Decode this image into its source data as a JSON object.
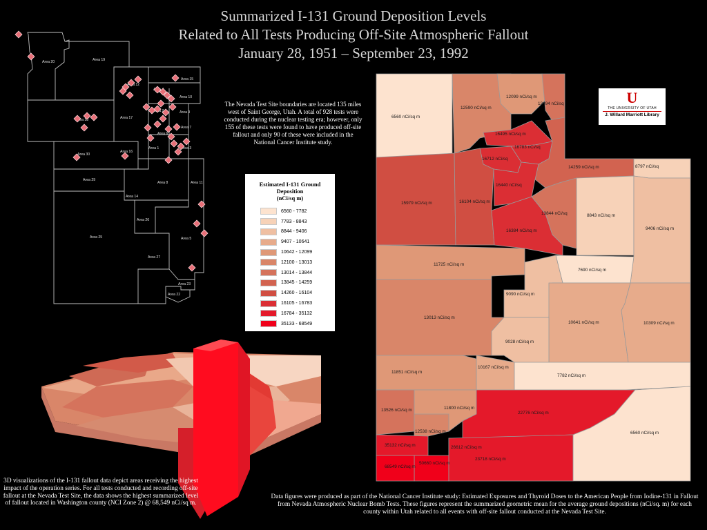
{
  "title": {
    "line1": "Summarized I-131 Ground Deposition Levels",
    "line2": "Related to All Tests Producing Off-Site Atmospheric Fallout",
    "line3": "January 28, 1951 – September 23, 1992"
  },
  "info_text": "The Nevada Test Site boundaries are located 135 miles west of Saint George, Utah. A total of 928 tests were conducted during the nuclear testing era; however, only 155 of these tests were found to have produced off-site fallout and only 90 of these were included in the National Cancer Institute study.",
  "legend": {
    "title_line1": "Estimated I-131 Ground",
    "title_line2": "Deposition",
    "title_line3": "(nCi/sq m)",
    "items": [
      {
        "label": "6560 - 7782",
        "color": "#fde3cf"
      },
      {
        "label": "7783 - 8843",
        "color": "#f7d2b8"
      },
      {
        "label": "8844 - 9406",
        "color": "#efbfa2"
      },
      {
        "label": "9407 - 10641",
        "color": "#e7ab8b"
      },
      {
        "label": "10642 - 12099",
        "color": "#df9877"
      },
      {
        "label": "12100 - 13013",
        "color": "#d98669"
      },
      {
        "label": "13014 - 13844",
        "color": "#d5735c"
      },
      {
        "label": "13845 - 14259",
        "color": "#d26350"
      },
      {
        "label": "14260 - 16104",
        "color": "#d04e42"
      },
      {
        "label": "16105 - 16783",
        "color": "#db2e34"
      },
      {
        "label": "16784 - 35132",
        "color": "#e4192a"
      },
      {
        "label": "35133 - 68549",
        "color": "#f0001a"
      }
    ]
  },
  "logo": {
    "mark": "U",
    "university": "THE UNIVERSITY OF UTAH",
    "library": "J. Willard Marriott Library"
  },
  "nts_areas": [
    "Area 20",
    "Area 19",
    "Area 12",
    "Area 15",
    "Area 18",
    "Area 10",
    "Area 9",
    "Area 17",
    "Area 7",
    "Area 2",
    "Area 4",
    "Area 1",
    "Area 3",
    "Area 16",
    "Area 30",
    "Area 29",
    "Area 8",
    "Area 11",
    "Area 6",
    "Area 14",
    "Area 26",
    "Area 25",
    "Area 5",
    "Area 27",
    "Area 23",
    "Area 22"
  ],
  "counties": [
    {
      "value": "6560 nCi/sq m",
      "color": "#fde3cf"
    },
    {
      "value": "12590 nCi/sq m",
      "color": "#d98669"
    },
    {
      "value": "12099 nCi/sq m",
      "color": "#df9877"
    },
    {
      "value": "13494 nCi/sq",
      "color": "#d5735c"
    },
    {
      "value": "16495 nCi/sq m",
      "color": "#db2e34"
    },
    {
      "value": "16783 nCi/sq",
      "color": "#db2e34"
    },
    {
      "value": "16712 nCi/sq",
      "color": "#db2e34"
    },
    {
      "value": "14259 nCi/sq m",
      "color": "#d26350"
    },
    {
      "value": "8797 nCi/sq",
      "color": "#f7d2b8"
    },
    {
      "value": "15979 nCi/sq m",
      "color": "#d04e42"
    },
    {
      "value": "16104 nCi/sq m",
      "color": "#d04e42"
    },
    {
      "value": "16440 nCi/sq",
      "color": "#db2e34"
    },
    {
      "value": "13844 nCi/sq",
      "color": "#d5735c"
    },
    {
      "value": "8843 nCi/sq m",
      "color": "#f7d2b8"
    },
    {
      "value": "9406 nCi/sq m",
      "color": "#efbfa2"
    },
    {
      "value": "16384 nCi/sq m",
      "color": "#db2e34"
    },
    {
      "value": "11725 nCi/sq m",
      "color": "#df9877"
    },
    {
      "value": "7690 nCi/sq m",
      "color": "#fde3cf"
    },
    {
      "value": "9090 nCi/sq m",
      "color": "#efbfa2"
    },
    {
      "value": "13013 nCi/sq m",
      "color": "#d98669"
    },
    {
      "value": "10641 nCi/sq m",
      "color": "#e7ab8b"
    },
    {
      "value": "10309 nCi/sq m",
      "color": "#e7ab8b"
    },
    {
      "value": "9028 nCi/sq m",
      "color": "#efbfa2"
    },
    {
      "value": "11851 nCi/sq m",
      "color": "#df9877"
    },
    {
      "value": "10167 nCi/sq m",
      "color": "#e7ab8b"
    },
    {
      "value": "7782 nCi/sq m",
      "color": "#fde3cf"
    },
    {
      "value": "13526 nCi/sq m",
      "color": "#d5735c"
    },
    {
      "value": "11800 nCi/sq m",
      "color": "#df9877"
    },
    {
      "value": "22776 nCi/sq m",
      "color": "#e4192a"
    },
    {
      "value": "12538 nCi/sq m",
      "color": "#d98669"
    },
    {
      "value": "6560 nCi/sq m",
      "color": "#fde3cf"
    },
    {
      "value": "35132 nCi/sq m",
      "color": "#e4192a"
    },
    {
      "value": "26612 nCi/sq m",
      "color": "#e4192a"
    },
    {
      "value": "50660 nCi/sq m",
      "color": "#f0001a"
    },
    {
      "value": "23718 nCi/sq m",
      "color": "#e4192a"
    },
    {
      "value": "68549 nCi/sq m",
      "color": "#f0001a"
    }
  ],
  "caption_3d": "3D visualizations of the I-131 fallout data depict areas receiving the highest impact of the operation series. For all tests conducted and recording off-site fallout at the Nevada Test Site, the data shows the highest summarized level of fallout located in Washington county (NCI Zone 2) @ 68,549 nCi/sq m.",
  "bottom_text": "Data figures were produced as part of the National Cancer Institute study: Estimated Exposures and Thyroid Doses to the American People from Iodine-131 in Fallout from Nevada Atmospheric Nuclear Bomb Tests. These figures represent the summarized geometric mean for the average ground depositions (nCi/sq. m) for each county within Utah related to all events with off-site fallout conducted at the Nevada Test Site."
}
